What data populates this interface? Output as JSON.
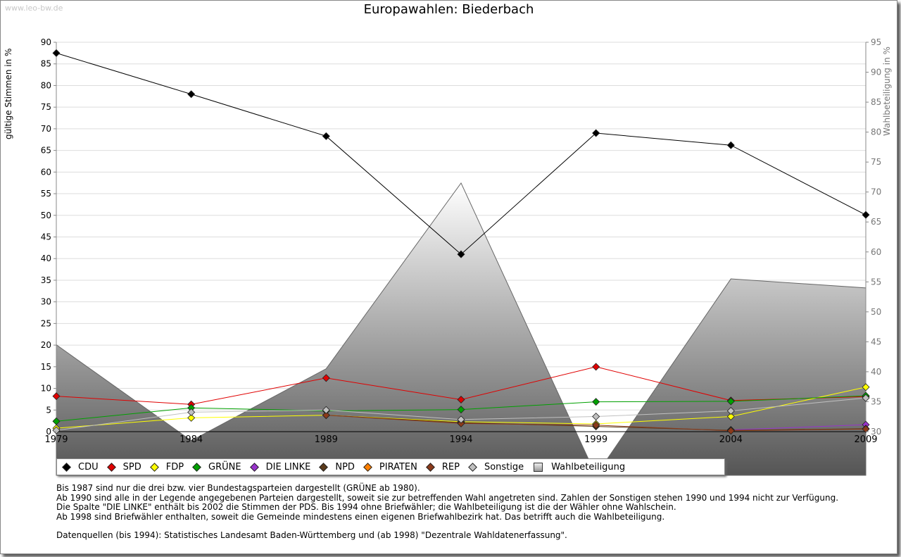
{
  "watermark": "www.leo-bw.de",
  "chart_data": {
    "type": "line",
    "title": "Europawahlen: Biederbach",
    "ylabel": "gültige Stimmen in %",
    "y2label": "Wahlbeteiligung in %",
    "x": [
      "1979",
      "1984",
      "1989",
      "1994",
      "1999",
      "2004",
      "2009"
    ],
    "ylim": [
      0,
      90
    ],
    "y2lim": [
      30,
      95
    ],
    "yticks": [
      "0",
      "5",
      "10",
      "15",
      "20",
      "25",
      "30",
      "35",
      "40",
      "45",
      "50",
      "55",
      "60",
      "65",
      "70",
      "75",
      "80",
      "85",
      "90"
    ],
    "y2ticks": [
      "30",
      "35",
      "40",
      "45",
      "50",
      "55",
      "60",
      "65",
      "70",
      "75",
      "80",
      "85",
      "90",
      "95"
    ],
    "series": [
      {
        "name": "CDU",
        "color": "#000000",
        "values": [
          87.5,
          78.0,
          68.3,
          41.0,
          69.0,
          66.2,
          50.1
        ]
      },
      {
        "name": "SPD",
        "color": "#e00000",
        "values": [
          8.2,
          6.3,
          12.4,
          7.4,
          15.0,
          7.2,
          8.1
        ]
      },
      {
        "name": "FDP",
        "color": "#ffff00",
        "values": [
          0.8,
          3.2,
          3.8,
          2.3,
          1.8,
          3.5,
          10.3
        ]
      },
      {
        "name": "GRÜNE",
        "color": "#00a000",
        "values": [
          2.4,
          5.5,
          4.8,
          5.1,
          6.9,
          7.0,
          8.3
        ]
      },
      {
        "name": "DIE LINKE",
        "color": "#9933cc",
        "values": [
          null,
          null,
          null,
          null,
          null,
          0.4,
          1.6
        ]
      },
      {
        "name": "NPD",
        "color": "#5a3a1a",
        "values": [
          null,
          null,
          3.8,
          2.1,
          1.2,
          0.3,
          0.7
        ]
      },
      {
        "name": "PIRATEN",
        "color": "#ff7f00",
        "values": [
          null,
          null,
          null,
          null,
          null,
          null,
          null
        ]
      },
      {
        "name": "REP",
        "color": "#8b3a1a",
        "values": [
          null,
          null,
          3.8,
          1.9,
          1.5,
          0.2,
          0.6
        ]
      },
      {
        "name": "Sonstige",
        "color": "#c0c0c0",
        "values": [
          0.3,
          4.5,
          5.0,
          2.8,
          3.5,
          4.8,
          7.8
        ]
      }
    ],
    "turnout": {
      "name": "Wahlbeteiligung",
      "values": [
        44.5,
        28.5,
        40.5,
        71.5,
        22.0,
        55.5,
        54.0
      ]
    }
  },
  "notes": [
    "Bis 1987 sind nur die drei bzw. vier Bundestagsparteien dargestellt (GRÜNE ab 1980).",
    "Ab 1990 sind alle in der Legende angegebenen Parteien dargestellt, soweit sie zur betreffenden Wahl angetreten sind. Zahlen der Sonstigen stehen 1990 und 1994 nicht zur Verfügung.",
    "Die Spalte \"DIE LINKE\" enthält bis 2002 die Stimmen der PDS. Bis 1994 ohne Briefwähler; die Wahlbeteiligung ist die der Wähler ohne Wahlschein.",
    "Ab 1998 sind Briefwähler enthalten, soweit die Gemeinde mindestens einen eigenen Briefwahlbezirk hat. Das betrifft auch die Wahlbeteiligung."
  ],
  "source": "Datenquellen (bis 1994): Statistisches Landesamt Baden-Württemberg und (ab 1998) \"Dezentrale Wahldatenerfassung\"."
}
